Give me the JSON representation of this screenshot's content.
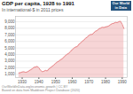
{
  "chart_data": {
    "type": "area",
    "title": "GDP per capita, 1928 to 1991",
    "subtitle": "In international-$ in 2011 prices",
    "annotations": [
      "Our World",
      "in Data",
      "OurWorldInData.org/economic-growth | CC BY",
      "Based on data from Maddison Project Database (2020)"
    ],
    "x": [
      1928,
      1929,
      1930,
      1931,
      1932,
      1933,
      1934,
      1935,
      1936,
      1937,
      1938,
      1939,
      1940,
      1941,
      1942,
      1943,
      1944,
      1945,
      1946,
      1947,
      1948,
      1949,
      1950,
      1951,
      1952,
      1953,
      1954,
      1955,
      1956,
      1957,
      1958,
      1959,
      1960,
      1961,
      1962,
      1963,
      1964,
      1965,
      1966,
      1967,
      1968,
      1969,
      1970,
      1971,
      1972,
      1973,
      1974,
      1975,
      1976,
      1977,
      1978,
      1979,
      1980,
      1981,
      1982,
      1983,
      1984,
      1985,
      1986,
      1987,
      1988,
      1989,
      1990,
      1991
    ],
    "values": [
      1200,
      1250,
      1350,
      1380,
      1300,
      1350,
      1500,
      1680,
      1820,
      2050,
      2100,
      2200,
      2000,
      1600,
      1400,
      1450,
      1600,
      1500,
      1800,
      2000,
      2200,
      2400,
      2650,
      2850,
      3000,
      3200,
      3350,
      3600,
      3850,
      4050,
      4200,
      4450,
      4750,
      4950,
      5150,
      5200,
      5550,
      5750,
      6000,
      6200,
      6450,
      6650,
      6900,
      7050,
      7050,
      7300,
      7550,
      7650,
      7900,
      8000,
      8150,
      8100,
      8200,
      8250,
      8350,
      8550,
      8700,
      8750,
      8900,
      8850,
      9000,
      9050,
      8600,
      7950
    ],
    "color": "#e8888a",
    "xlim": [
      1926,
      1993
    ],
    "xticks": [
      1930,
      1940,
      1950,
      1960,
      1970,
      1980,
      1990
    ],
    "ylim": [
      500,
      9800
    ],
    "yticks": [
      {
        "value": 1000,
        "label": "1,000"
      },
      {
        "value": 2000,
        "label": "2,000"
      },
      {
        "value": 3000,
        "label": "3,000"
      },
      {
        "value": 4000,
        "label": "4,000"
      },
      {
        "value": 5000,
        "label": "5,000"
      },
      {
        "value": 6000,
        "label": "6,000"
      },
      {
        "value": 7000,
        "label": "7,000"
      },
      {
        "value": 8000,
        "label": "8,000"
      },
      {
        "value": 9000,
        "label": "9,000"
      }
    ],
    "grid": true
  }
}
